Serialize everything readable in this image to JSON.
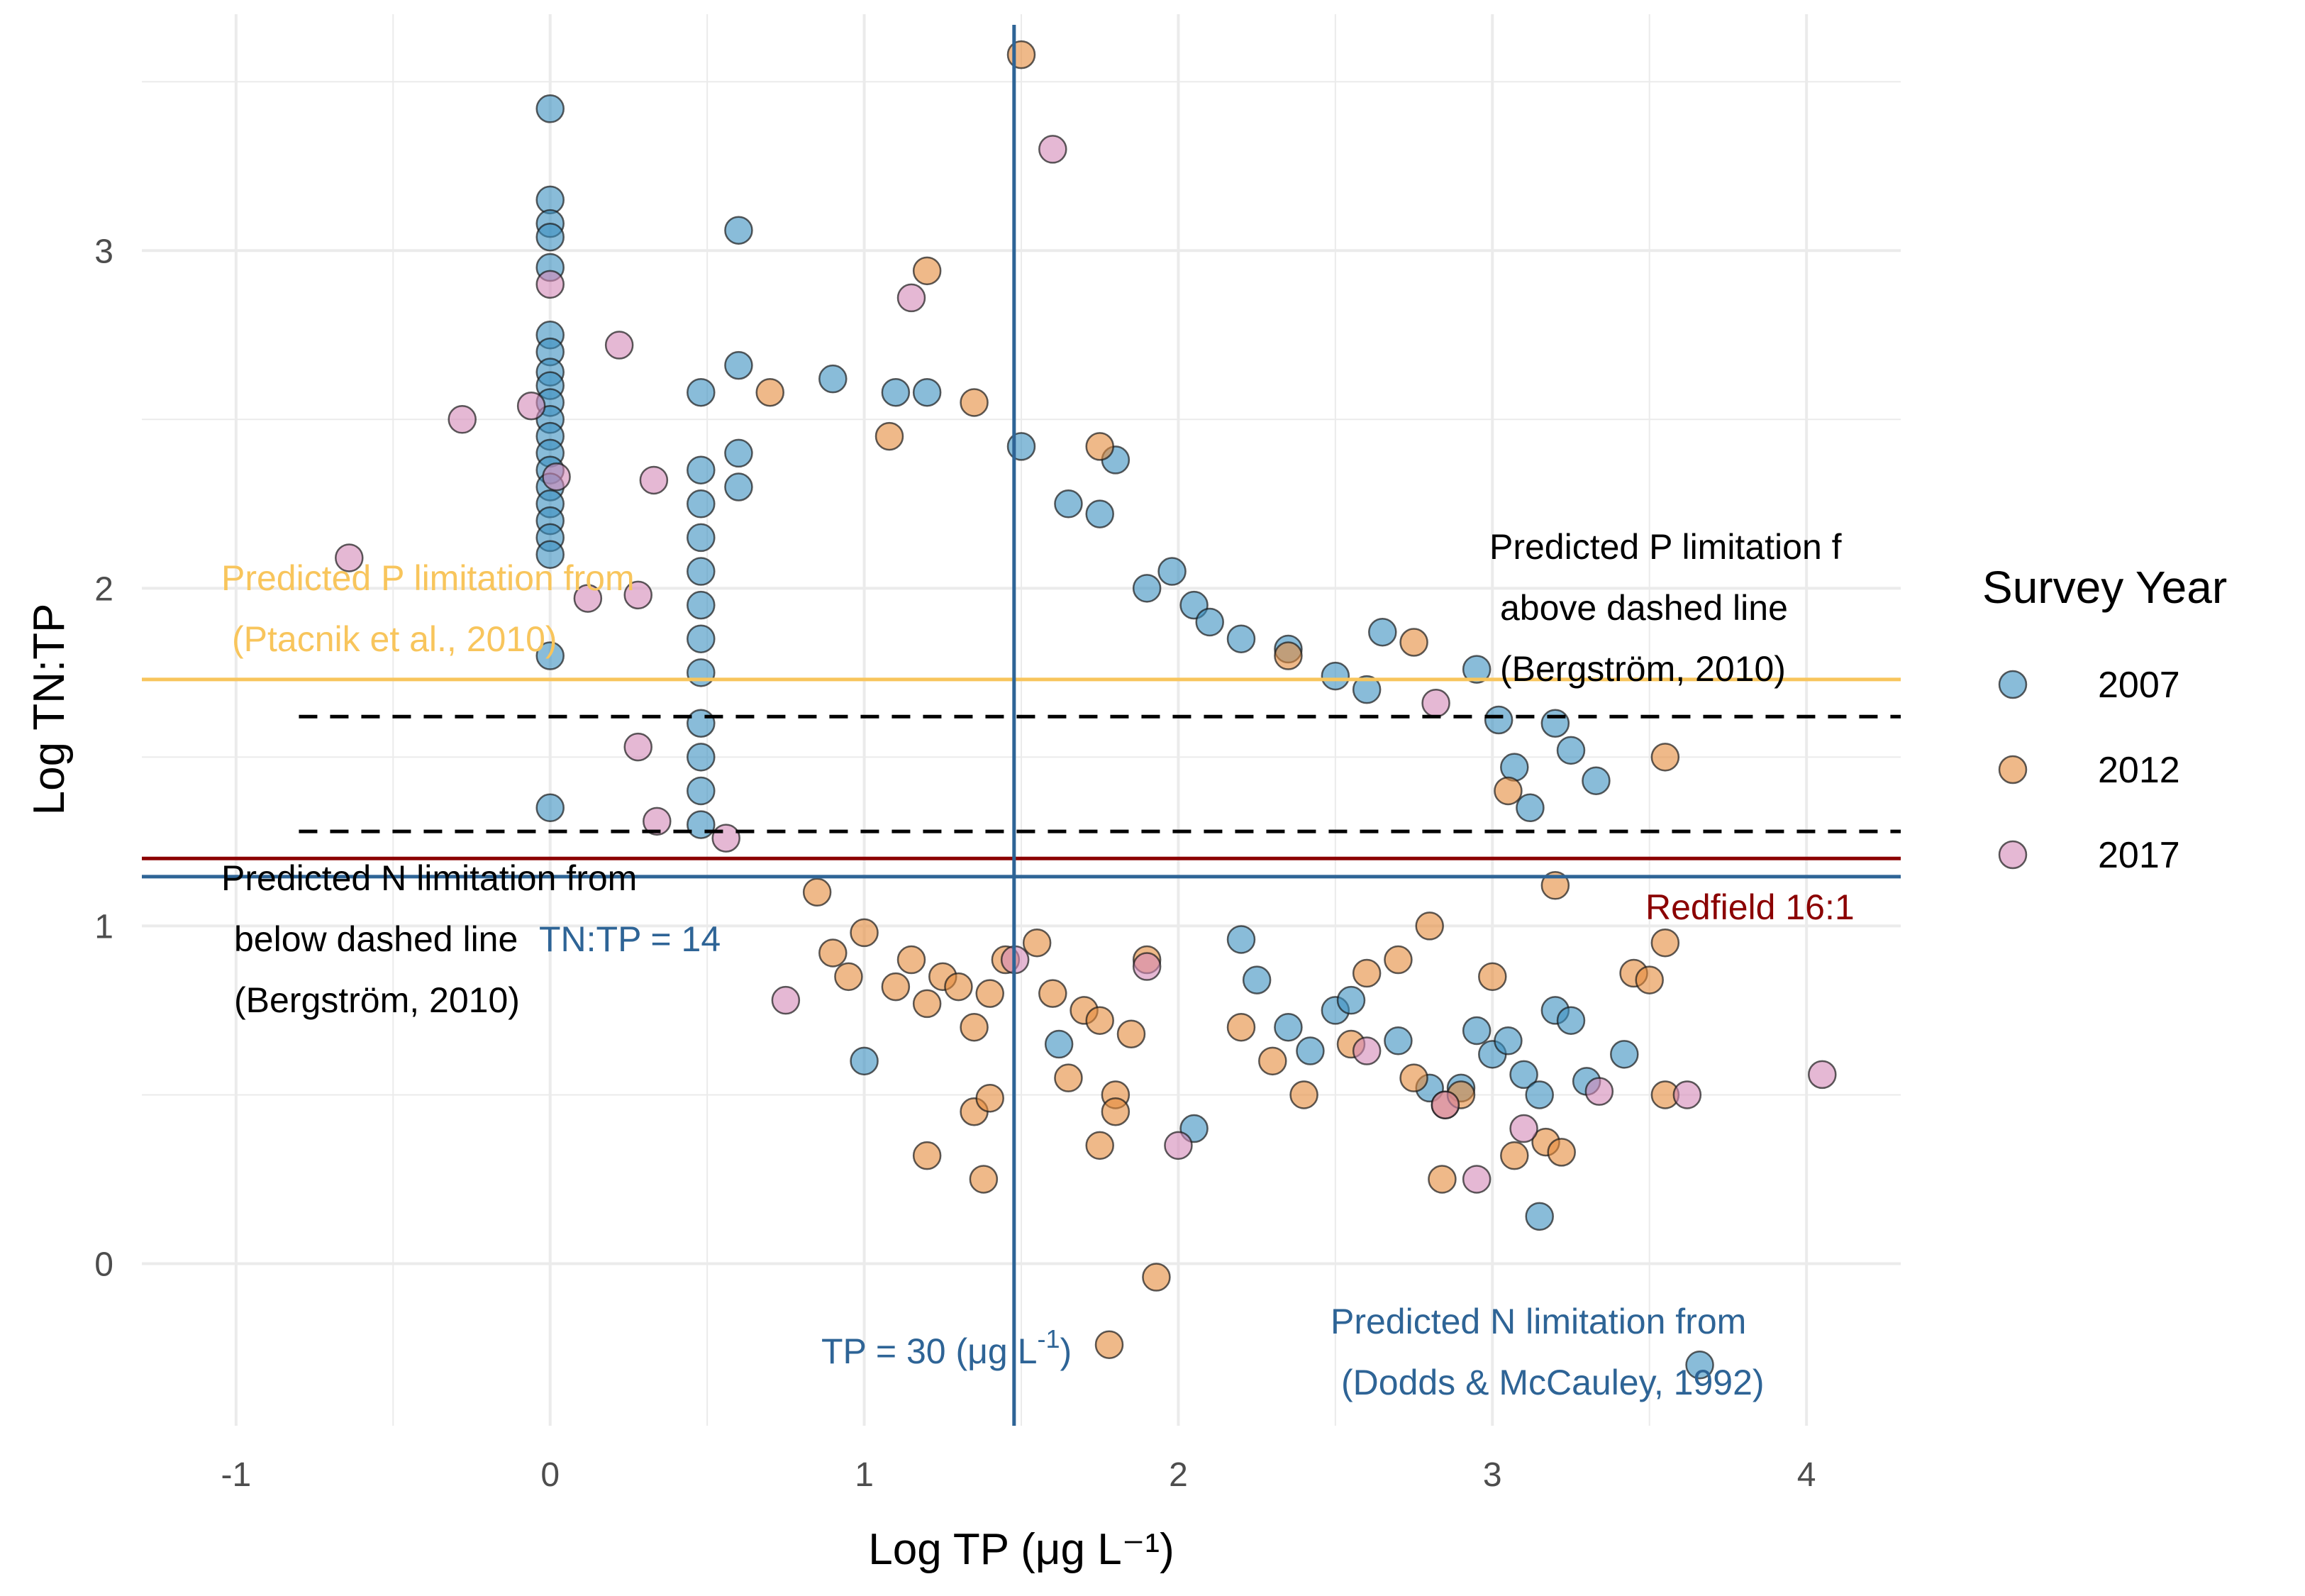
{
  "chart_data": {
    "type": "scatter",
    "title": "",
    "xlabel": "Log TP (μg L⁻¹)",
    "ylabel": "Log TN:TP",
    "xlim": [
      -1.3,
      4.3
    ],
    "ylim": [
      -0.48,
      3.7
    ],
    "x_ticks": [
      "-1",
      "0",
      "1",
      "2",
      "3",
      "4"
    ],
    "x_tick_values": [
      -1,
      0,
      1,
      2,
      3,
      4
    ],
    "y_ticks": [
      "0",
      "1",
      "2",
      "3"
    ],
    "y_tick_values": [
      0,
      1,
      2,
      3
    ],
    "grid": true,
    "legend": {
      "title": "Survey Year",
      "placement": "right",
      "entries": [
        "2007",
        "2012",
        "2017"
      ]
    },
    "colors": {
      "2007": "#3a8fbf",
      "2012": "#e48a3b",
      "2017": "#d488b8",
      "ptacnik": "#f8c55c",
      "redfield": "#8b0000",
      "dodds": "#2e6496",
      "dashed": "#000000",
      "grid": "#ebebeb"
    },
    "reference_lines": [
      {
        "name": "ptacnik-line",
        "orientation": "horizontal",
        "value": 1.73
      },
      {
        "name": "bergstrom-upper-line",
        "orientation": "horizontal",
        "value": 1.62,
        "dashed": true
      },
      {
        "name": "bergstrom-lower-line",
        "orientation": "horizontal",
        "value": 1.28,
        "dashed": true
      },
      {
        "name": "redfield-line",
        "orientation": "horizontal",
        "value": 1.2
      },
      {
        "name": "tn-tp-14-line",
        "orientation": "horizontal",
        "value": 1.146
      },
      {
        "name": "tp-30-line",
        "orientation": "vertical",
        "value": 1.477
      }
    ],
    "annotations": {
      "ptacnik_1": "Predicted P limitation from",
      "ptacnik_2": "(Ptacnik et al., 2010)",
      "bergstrom_p_1": "Predicted P limitation f",
      "bergstrom_p_2": "above dashed line",
      "bergstrom_p_3": "(Bergström, 2010)",
      "bergstrom_n_1": "Predicted N limitation from",
      "bergstrom_n_2": "below dashed line",
      "bergstrom_n_3": "(Bergström, 2010)",
      "tn_tp_14": "TN:TP = 14",
      "redfield": "Redfield 16:1",
      "tp_30_main": "TP = 30 (μg L",
      "tp_30_sup": "-1",
      "tp_30_close": ")",
      "dodds_1": "Predicted N limitation from",
      "dodds_2": "(Dodds & McCauley, 1992)"
    },
    "series": [
      {
        "name": "2007",
        "points": [
          [
            0,
            3.42
          ],
          [
            0,
            3.15
          ],
          [
            0,
            3.08
          ],
          [
            0,
            3.04
          ],
          [
            0,
            2.95
          ],
          [
            0,
            2.75
          ],
          [
            0,
            2.7
          ],
          [
            0,
            2.64
          ],
          [
            0,
            2.6
          ],
          [
            0,
            2.55
          ],
          [
            0,
            2.5
          ],
          [
            0,
            2.45
          ],
          [
            0,
            2.4
          ],
          [
            0,
            2.35
          ],
          [
            0,
            2.3
          ],
          [
            0,
            2.25
          ],
          [
            0,
            2.2
          ],
          [
            0,
            2.15
          ],
          [
            0,
            2.1
          ],
          [
            0,
            1.8
          ],
          [
            0,
            1.35
          ],
          [
            0.48,
            2.58
          ],
          [
            0.48,
            2.35
          ],
          [
            0.48,
            2.25
          ],
          [
            0.48,
            2.15
          ],
          [
            0.48,
            2.05
          ],
          [
            0.48,
            1.95
          ],
          [
            0.48,
            1.85
          ],
          [
            0.48,
            1.75
          ],
          [
            0.48,
            1.6
          ],
          [
            0.48,
            1.5
          ],
          [
            0.48,
            1.4
          ],
          [
            0.48,
            1.3
          ],
          [
            0.6,
            3.06
          ],
          [
            0.6,
            2.66
          ],
          [
            0.6,
            2.4
          ],
          [
            0.6,
            2.3
          ],
          [
            0.9,
            2.62
          ],
          [
            1.1,
            2.58
          ],
          [
            1.2,
            2.58
          ],
          [
            1.5,
            2.42
          ],
          [
            1.65,
            2.25
          ],
          [
            1.75,
            2.22
          ],
          [
            1.8,
            2.38
          ],
          [
            1.9,
            2.0
          ],
          [
            1.98,
            2.05
          ],
          [
            2.05,
            1.95
          ],
          [
            2.1,
            1.9
          ],
          [
            2.2,
            1.85
          ],
          [
            2.35,
            1.82
          ],
          [
            2.5,
            1.74
          ],
          [
            2.6,
            1.7
          ],
          [
            2.65,
            1.87
          ],
          [
            2.95,
            1.76
          ],
          [
            3.02,
            1.61
          ],
          [
            3.07,
            1.47
          ],
          [
            3.12,
            1.35
          ],
          [
            3.2,
            1.6
          ],
          [
            3.25,
            1.52
          ],
          [
            3.33,
            1.43
          ],
          [
            2.2,
            0.96
          ],
          [
            2.25,
            0.84
          ],
          [
            2.35,
            0.7
          ],
          [
            2.42,
            0.63
          ],
          [
            2.5,
            0.75
          ],
          [
            2.55,
            0.78
          ],
          [
            2.7,
            0.66
          ],
          [
            2.8,
            0.52
          ],
          [
            2.9,
            0.52
          ],
          [
            2.95,
            0.69
          ],
          [
            3.0,
            0.62
          ],
          [
            3.05,
            0.66
          ],
          [
            3.1,
            0.56
          ],
          [
            3.15,
            0.5
          ],
          [
            3.2,
            0.75
          ],
          [
            3.25,
            0.72
          ],
          [
            3.3,
            0.54
          ],
          [
            3.42,
            0.62
          ],
          [
            3.15,
            0.14
          ],
          [
            1.0,
            0.6
          ],
          [
            2.05,
            0.4
          ],
          [
            1.62,
            0.65
          ],
          [
            3.66,
            -0.3
          ]
        ]
      },
      {
        "name": "2012",
        "points": [
          [
            1.5,
            3.58
          ],
          [
            1.2,
            2.94
          ],
          [
            0.7,
            2.58
          ],
          [
            1.08,
            2.45
          ],
          [
            1.35,
            2.55
          ],
          [
            1.75,
            2.42
          ],
          [
            2.35,
            1.8
          ],
          [
            2.75,
            1.84
          ],
          [
            3.55,
            1.5
          ],
          [
            0.85,
            1.1
          ],
          [
            0.9,
            0.92
          ],
          [
            0.95,
            0.85
          ],
          [
            1.0,
            0.98
          ],
          [
            1.1,
            0.82
          ],
          [
            1.15,
            0.9
          ],
          [
            1.2,
            0.77
          ],
          [
            1.25,
            0.85
          ],
          [
            1.3,
            0.82
          ],
          [
            1.35,
            0.7
          ],
          [
            1.4,
            0.8
          ],
          [
            1.45,
            0.9
          ],
          [
            1.55,
            0.95
          ],
          [
            1.6,
            0.8
          ],
          [
            1.65,
            0.55
          ],
          [
            1.7,
            0.75
          ],
          [
            1.75,
            0.72
          ],
          [
            1.8,
            0.5
          ],
          [
            1.85,
            0.68
          ],
          [
            1.9,
            0.9
          ],
          [
            1.2,
            0.32
          ],
          [
            1.35,
            0.45
          ],
          [
            1.38,
            0.25
          ],
          [
            1.4,
            0.49
          ],
          [
            1.75,
            0.35
          ],
          [
            1.8,
            0.45
          ],
          [
            1.78,
            -0.24
          ],
          [
            1.93,
            -0.04
          ],
          [
            2.2,
            0.7
          ],
          [
            2.3,
            0.6
          ],
          [
            2.4,
            0.5
          ],
          [
            2.55,
            0.65
          ],
          [
            2.75,
            0.55
          ],
          [
            2.85,
            0.47
          ],
          [
            2.9,
            0.5
          ],
          [
            2.84,
            0.25
          ],
          [
            3.07,
            0.32
          ],
          [
            3.17,
            0.36
          ],
          [
            3.22,
            0.33
          ],
          [
            3.45,
            0.86
          ],
          [
            3.5,
            0.84
          ],
          [
            3.55,
            0.5
          ],
          [
            3.55,
            0.95
          ],
          [
            3.2,
            1.12
          ],
          [
            3.05,
            1.4
          ],
          [
            2.6,
            0.86
          ],
          [
            2.7,
            0.9
          ],
          [
            2.8,
            1.0
          ],
          [
            3.0,
            0.85
          ]
        ]
      },
      {
        "name": "2017",
        "points": [
          [
            1.6,
            3.3
          ],
          [
            1.15,
            2.86
          ],
          [
            0.22,
            2.72
          ],
          [
            -0.28,
            2.5
          ],
          [
            -0.06,
            2.54
          ],
          [
            0.02,
            2.33
          ],
          [
            0.33,
            2.32
          ],
          [
            0.0,
            2.9
          ],
          [
            -0.64,
            2.09
          ],
          [
            0.12,
            1.97
          ],
          [
            0.28,
            1.98
          ],
          [
            0.28,
            1.53
          ],
          [
            0.34,
            1.31
          ],
          [
            0.56,
            1.26
          ],
          [
            0.75,
            0.78
          ],
          [
            1.9,
            0.88
          ],
          [
            2.0,
            0.35
          ],
          [
            2.95,
            0.25
          ],
          [
            3.1,
            0.4
          ],
          [
            3.62,
            0.5
          ],
          [
            3.34,
            0.51
          ],
          [
            4.05,
            0.56
          ],
          [
            2.85,
            0.47
          ],
          [
            2.82,
            1.66
          ],
          [
            2.6,
            0.63
          ],
          [
            1.48,
            0.9
          ]
        ]
      }
    ]
  }
}
